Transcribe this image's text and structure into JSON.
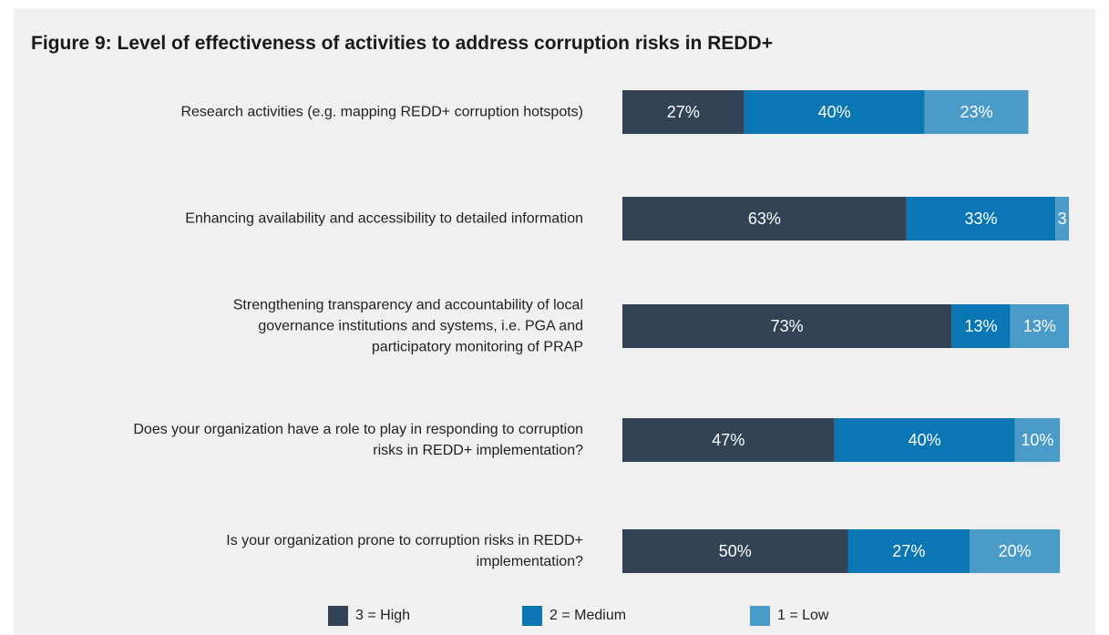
{
  "chart_data": {
    "type": "stacked_barh",
    "title": "Figure 9: Level of effectiveness of activities to address corruption risks in REDD+",
    "categories": [
      "Research activities (e.g. mapping REDD+ corruption hotspots)",
      "Enhancing availability and accessibility to detailed information",
      "Strengthening transparency and accountability of local governance institutions and systems, i.e. PGA and participatory monitoring of PRAP",
      "Does your organization have a role to play in responding to corruption risks in REDD+ implementation?",
      "Is your organization prone to corruption risks in REDD+ implementation?"
    ],
    "series": [
      {
        "name": "3 = High",
        "color": "#344256",
        "values": [
          27,
          63,
          73,
          47,
          50
        ],
        "value_labels": [
          "27%",
          "63%",
          "73%",
          "47%",
          "50%"
        ]
      },
      {
        "name": "2 = Medium",
        "color": "#0a76b4",
        "values": [
          40,
          33,
          13,
          40,
          27
        ],
        "value_labels": [
          "40%",
          "33%",
          "13%",
          "40%",
          "27%"
        ]
      },
      {
        "name": "1 = Low",
        "color": "#4a9bc8",
        "values": [
          23,
          3,
          13,
          10,
          20
        ],
        "value_labels": [
          "23%",
          "3",
          "13%",
          "10%",
          "20%"
        ]
      }
    ],
    "xlim": [
      0,
      100
    ],
    "legend": "bottom"
  }
}
